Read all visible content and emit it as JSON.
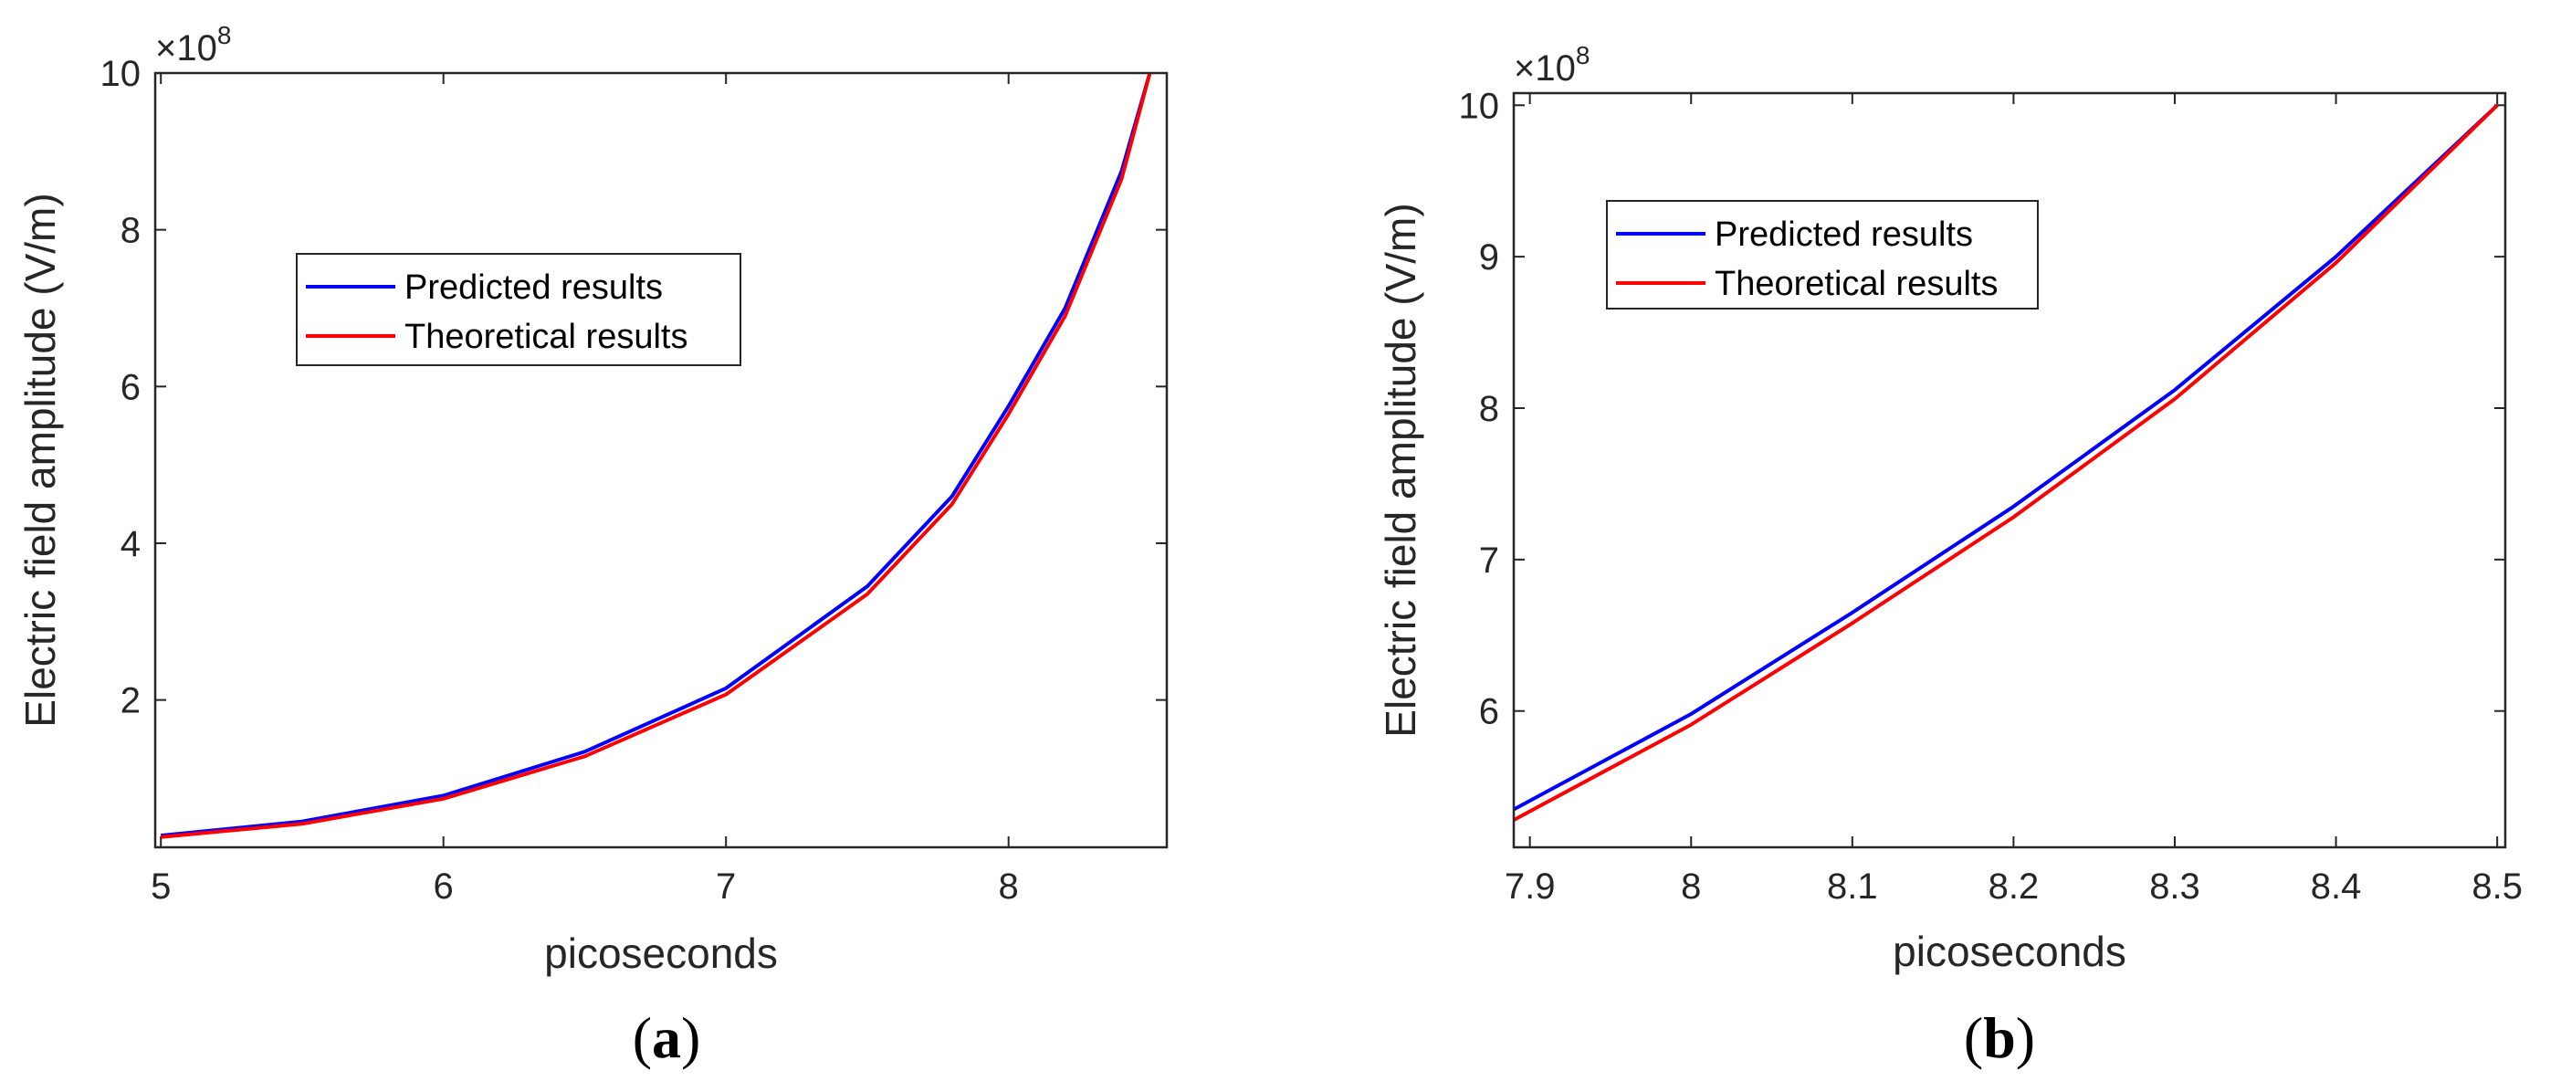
{
  "colors": {
    "predicted": "#0000ff",
    "theoretical": "#ff0000",
    "axis": "#262626"
  },
  "chart_data": [
    {
      "type": "line",
      "panel": "a",
      "caption": "(a)",
      "caption_letter": "a",
      "xlabel": "picoseconds",
      "ylabel": "Electric field amplitude (V/m)",
      "y_exponent": "×10",
      "y_exponent_power": "8",
      "xlim": [
        4.98,
        8.56
      ],
      "ylim": [
        0.12,
        10.0
      ],
      "xticks": [
        5,
        6,
        7,
        8
      ],
      "xtick_labels": [
        "5",
        "6",
        "7",
        "8"
      ],
      "yticks": [
        2,
        4,
        6,
        8,
        10
      ],
      "ytick_labels": [
        "2",
        "4",
        "6",
        "8",
        "10"
      ],
      "legend_position": "center-left",
      "series": [
        {
          "name": "Predicted results",
          "x": [
            5.0,
            5.5,
            6.0,
            6.5,
            7.0,
            7.5,
            7.8,
            8.0,
            8.2,
            8.4,
            8.5
          ],
          "values": [
            0.27,
            0.45,
            0.78,
            1.34,
            2.15,
            3.45,
            4.6,
            5.75,
            7.0,
            8.75,
            10.0
          ]
        },
        {
          "name": "Theoretical results",
          "x": [
            5.0,
            5.5,
            6.0,
            6.5,
            7.0,
            7.5,
            7.8,
            8.0,
            8.2,
            8.4,
            8.5
          ],
          "values": [
            0.25,
            0.42,
            0.74,
            1.28,
            2.07,
            3.35,
            4.5,
            5.65,
            6.9,
            8.65,
            10.0
          ]
        }
      ]
    },
    {
      "type": "line",
      "panel": "b",
      "caption": "(b)",
      "caption_letter": "b",
      "xlabel": "picoseconds",
      "ylabel": "Electric field amplitude (V/m)",
      "y_exponent": "×10",
      "y_exponent_power": "8",
      "xlim": [
        7.89,
        8.505
      ],
      "ylim": [
        5.1,
        10.08
      ],
      "xticks": [
        7.9,
        8.0,
        8.1,
        8.2,
        8.3,
        8.4,
        8.5
      ],
      "xtick_labels": [
        "7.9",
        "8",
        "8.1",
        "8.2",
        "8.3",
        "8.4",
        "8.5"
      ],
      "yticks": [
        6,
        7,
        8,
        9,
        10
      ],
      "ytick_labels": [
        "6",
        "7",
        "8",
        "9",
        "10"
      ],
      "legend_position": "upper-left",
      "series": [
        {
          "name": "Predicted results",
          "x": [
            7.89,
            8.0,
            8.1,
            8.2,
            8.3,
            8.4,
            8.5
          ],
          "values": [
            5.35,
            5.98,
            6.65,
            7.35,
            8.12,
            9.0,
            10.0
          ]
        },
        {
          "name": "Theoretical results",
          "x": [
            7.89,
            8.0,
            8.1,
            8.2,
            8.3,
            8.4,
            8.5
          ],
          "values": [
            5.28,
            5.91,
            6.58,
            7.28,
            8.06,
            8.96,
            10.0
          ]
        }
      ]
    }
  ]
}
